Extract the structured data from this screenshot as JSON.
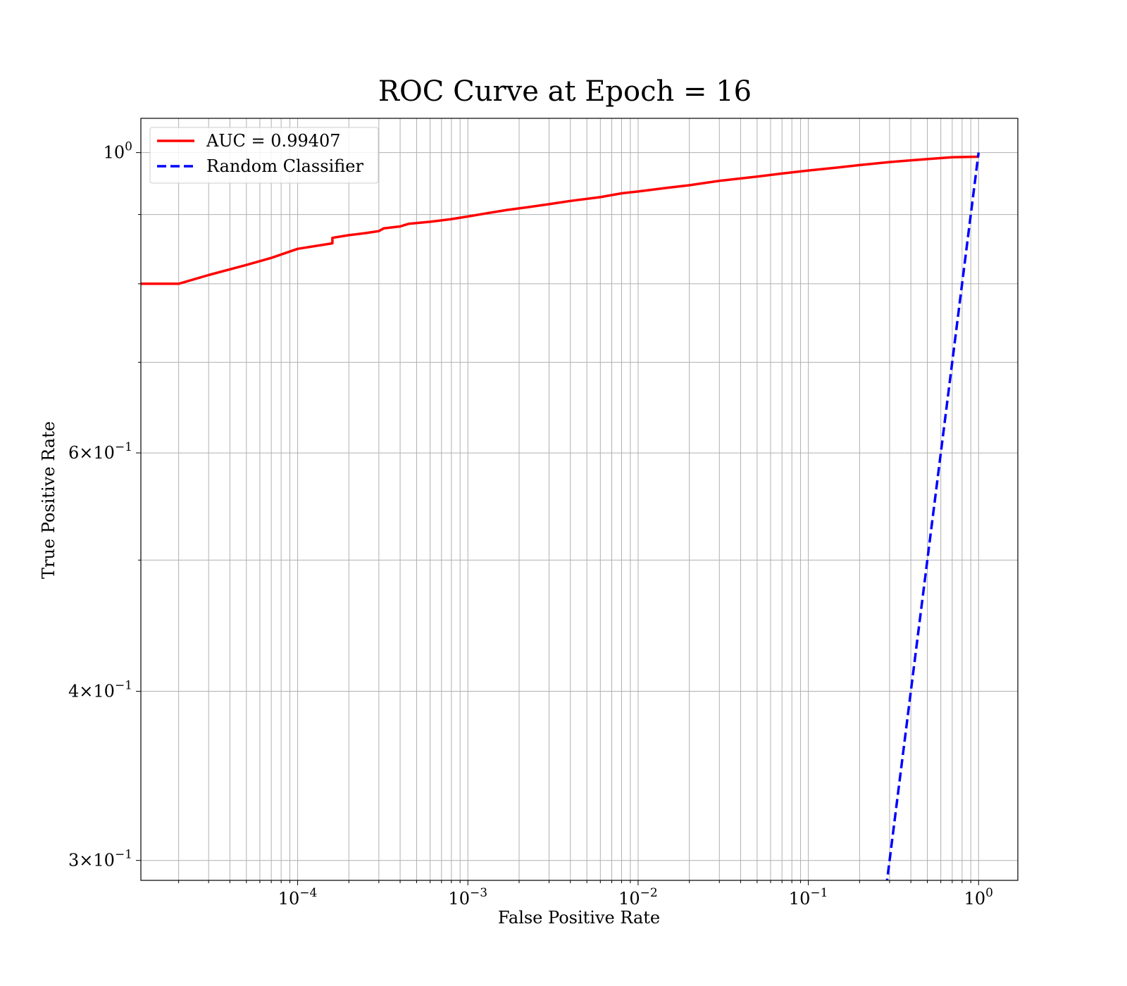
{
  "chart_data": {
    "type": "line",
    "title": "ROC Curve at Epoch = 16",
    "xlabel": "False Positive Rate",
    "ylabel": "True Positive Rate",
    "xscale": "log",
    "yscale": "log",
    "xlim": [
      1.2e-05,
      1.7
    ],
    "ylim": [
      0.29,
      1.06
    ],
    "grid": true,
    "grid_minor": true,
    "legend_position": "upper-left",
    "x_ticks": [
      {
        "value": 0.0001,
        "base": "10",
        "exp": "−4"
      },
      {
        "value": 0.001,
        "base": "10",
        "exp": "−3"
      },
      {
        "value": 0.01,
        "base": "10",
        "exp": "−2"
      },
      {
        "value": 0.1,
        "base": "10",
        "exp": "−1"
      },
      {
        "value": 1,
        "base": "10",
        "exp": "0"
      }
    ],
    "y_ticks": [
      {
        "value": 1,
        "base": "10",
        "exp": "0"
      },
      {
        "value": 0.6,
        "base": "6×10",
        "exp": "−1"
      },
      {
        "value": 0.4,
        "base": "4×10",
        "exp": "−1"
      },
      {
        "value": 0.3,
        "base": "3×10",
        "exp": "−1"
      }
    ],
    "y_minor_ticks": [
      0.5,
      0.7,
      0.8,
      0.9
    ],
    "series": [
      {
        "name": "AUC = 0.99407",
        "color": "#ff0000",
        "style": "solid",
        "x": [
          1.2e-05,
          2e-05,
          3e-05,
          5e-05,
          7e-05,
          0.0001,
          0.00016,
          0.00016,
          0.0002,
          0.00025,
          0.0003,
          0.00032,
          0.0004,
          0.00045,
          0.0006,
          0.0008,
          0.001,
          0.0013,
          0.0017,
          0.0022,
          0.003,
          0.004,
          0.006,
          0.008,
          0.01,
          0.015,
          0.02,
          0.03,
          0.05,
          0.07,
          0.1,
          0.15,
          0.2,
          0.3,
          0.5,
          0.7,
          1.0
        ],
        "y": [
          0.8,
          0.8,
          0.812,
          0.826,
          0.836,
          0.849,
          0.857,
          0.865,
          0.869,
          0.872,
          0.875,
          0.879,
          0.882,
          0.886,
          0.889,
          0.893,
          0.897,
          0.902,
          0.907,
          0.911,
          0.916,
          0.921,
          0.927,
          0.933,
          0.936,
          0.942,
          0.946,
          0.953,
          0.96,
          0.965,
          0.97,
          0.975,
          0.979,
          0.984,
          0.989,
          0.992,
          0.993
        ]
      },
      {
        "name": "Random Classifier",
        "color": "#0000ff",
        "style": "dashed",
        "x": [
          0.28,
          1.0
        ],
        "y": [
          0.28,
          1.0
        ]
      }
    ]
  }
}
